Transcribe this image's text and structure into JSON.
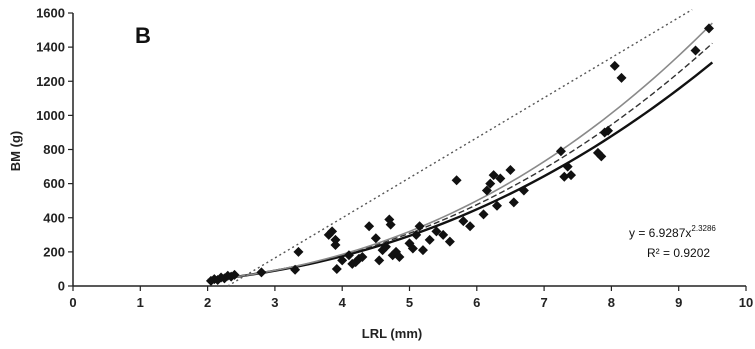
{
  "chart_data": {
    "type": "scatter",
    "panel_label": "B",
    "xlabel": "LRL (mm)",
    "ylabel": "BM (g)",
    "xlim": [
      0,
      10
    ],
    "ylim": [
      0,
      1600
    ],
    "xticks": [
      "0",
      "1",
      "2",
      "3",
      "4",
      "5",
      "6",
      "7",
      "8",
      "9",
      "10"
    ],
    "yticks": [
      "0",
      "200",
      "400",
      "600",
      "800",
      "1000",
      "1200",
      "1400",
      "1600"
    ],
    "grid": false,
    "points": [
      {
        "x": 2.05,
        "y": 30
      },
      {
        "x": 2.1,
        "y": 40
      },
      {
        "x": 2.15,
        "y": 35
      },
      {
        "x": 2.2,
        "y": 50
      },
      {
        "x": 2.25,
        "y": 45
      },
      {
        "x": 2.3,
        "y": 60
      },
      {
        "x": 2.35,
        "y": 55
      },
      {
        "x": 2.4,
        "y": 65
      },
      {
        "x": 2.8,
        "y": 80
      },
      {
        "x": 3.3,
        "y": 95
      },
      {
        "x": 3.35,
        "y": 200
      },
      {
        "x": 3.8,
        "y": 300
      },
      {
        "x": 3.85,
        "y": 320
      },
      {
        "x": 3.9,
        "y": 270
      },
      {
        "x": 3.9,
        "y": 240
      },
      {
        "x": 3.92,
        "y": 100
      },
      {
        "x": 4.0,
        "y": 150
      },
      {
        "x": 4.1,
        "y": 180
      },
      {
        "x": 4.15,
        "y": 130
      },
      {
        "x": 4.2,
        "y": 140
      },
      {
        "x": 4.25,
        "y": 160
      },
      {
        "x": 4.3,
        "y": 170
      },
      {
        "x": 4.4,
        "y": 350
      },
      {
        "x": 4.5,
        "y": 280
      },
      {
        "x": 4.55,
        "y": 150
      },
      {
        "x": 4.6,
        "y": 210
      },
      {
        "x": 4.65,
        "y": 230
      },
      {
        "x": 4.7,
        "y": 390
      },
      {
        "x": 4.72,
        "y": 360
      },
      {
        "x": 4.75,
        "y": 180
      },
      {
        "x": 4.8,
        "y": 200
      },
      {
        "x": 4.85,
        "y": 170
      },
      {
        "x": 5.0,
        "y": 250
      },
      {
        "x": 5.05,
        "y": 220
      },
      {
        "x": 5.1,
        "y": 300
      },
      {
        "x": 5.15,
        "y": 350
      },
      {
        "x": 5.2,
        "y": 210
      },
      {
        "x": 5.3,
        "y": 270
      },
      {
        "x": 5.4,
        "y": 320
      },
      {
        "x": 5.5,
        "y": 300
      },
      {
        "x": 5.6,
        "y": 260
      },
      {
        "x": 5.7,
        "y": 620
      },
      {
        "x": 5.8,
        "y": 380
      },
      {
        "x": 5.9,
        "y": 350
      },
      {
        "x": 6.1,
        "y": 420
      },
      {
        "x": 6.15,
        "y": 560
      },
      {
        "x": 6.2,
        "y": 600
      },
      {
        "x": 6.25,
        "y": 650
      },
      {
        "x": 6.3,
        "y": 470
      },
      {
        "x": 6.35,
        "y": 630
      },
      {
        "x": 6.5,
        "y": 680
      },
      {
        "x": 6.55,
        "y": 490
      },
      {
        "x": 6.7,
        "y": 560
      },
      {
        "x": 7.25,
        "y": 790
      },
      {
        "x": 7.3,
        "y": 640
      },
      {
        "x": 7.4,
        "y": 650
      },
      {
        "x": 7.35,
        "y": 700
      },
      {
        "x": 7.8,
        "y": 780
      },
      {
        "x": 7.85,
        "y": 760
      },
      {
        "x": 7.9,
        "y": 900
      },
      {
        "x": 7.95,
        "y": 910
      },
      {
        "x": 8.05,
        "y": 1290
      },
      {
        "x": 8.15,
        "y": 1220
      },
      {
        "x": 9.25,
        "y": 1380
      },
      {
        "x": 9.45,
        "y": 1510
      }
    ],
    "trendlines": [
      {
        "style": "solid-black",
        "a": 6.9287,
        "b": 2.3286,
        "x_range": [
          2.0,
          9.5
        ]
      },
      {
        "style": "dashed-black",
        "a": 6.7,
        "b": 2.38,
        "x_range": [
          2.0,
          9.5
        ]
      },
      {
        "style": "solid-gray",
        "a": 6.2,
        "b": 2.45,
        "x_range": [
          2.0,
          9.5
        ]
      },
      {
        "style": "dotted",
        "a": 0.0,
        "b": 1.0,
        "x_range": [
          2.3,
          9.2
        ],
        "linear": {
          "x0": 2.3,
          "y0": 0,
          "x1": 9.2,
          "y1": 1620
        }
      }
    ],
    "equation": "y = 6.9287x",
    "equation_exponent": "2.3286",
    "r_squared_label": "R² = 0.9202"
  }
}
